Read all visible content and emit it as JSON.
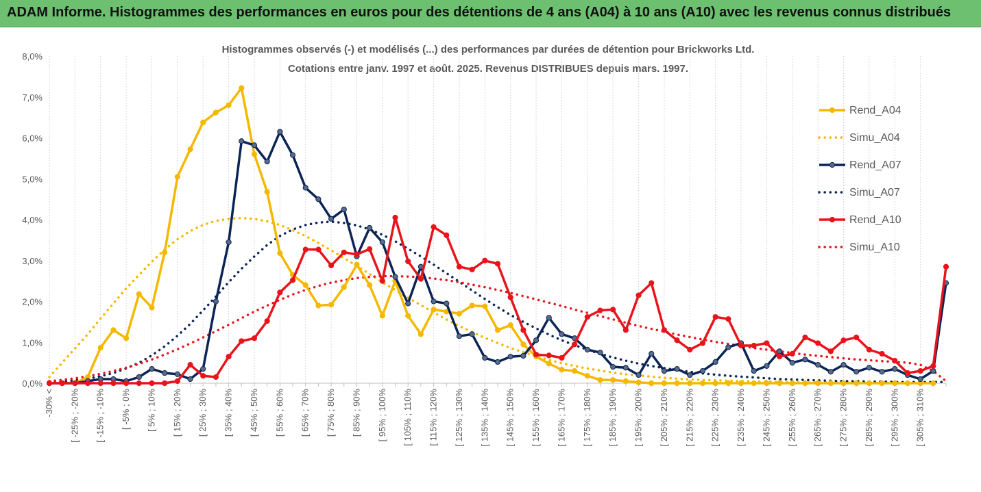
{
  "header": {
    "banner_title": "ADAM Informe. Histogrammes des performances en euros pour des détentions de 4 ans (A04) à 10 ans (A10) avec les revenus connus distribués"
  },
  "chart_data": {
    "type": "line",
    "title_line1": "Histogrammes observés (-) et modélisés (...) des performances par durées de détention pour Brickworks Ltd.",
    "title_line2": "Cotations entre janv. 1997 et août. 2025. Revenus DISTRIBUES depuis mars. 1997.",
    "xlabel": "",
    "ylabel": "",
    "ylim": [
      0,
      8
    ],
    "y_ticks": [
      "0,0%",
      "1,0%",
      "2,0%",
      "3,0%",
      "4,0%",
      "5,0%",
      "6,0%",
      "7,0%",
      "8,0%"
    ],
    "grid": "vertical",
    "legend_position": "top-right",
    "x_labels": [
      "-30% <",
      "[ -25% ; -20%",
      "[ -15% ; -10%",
      "[ -5% ; 0%",
      "[ 5% ; 10%",
      "[ 15% ; 20%",
      "[ 25% ; 30%",
      "[ 35% ; 40%",
      "[ 45% ; 50%",
      "[ 55% ; 60%",
      "[ 65% ; 70%",
      "[ 75% ; 80%",
      "[ 85% ; 90%",
      "[ 95% ; 100%",
      "[ 105% ; 110%",
      "[ 115% ; 120%",
      "[ 125% ; 130%",
      "[ 135% ; 140%",
      "[ 145% ; 150%",
      "[ 155% ; 160%",
      "[ 165% ; 170%",
      "[ 175% ; 180%",
      "[ 185% ; 190%",
      "[ 195% ; 200%",
      "[ 205% ; 210%",
      "[ 215% ; 220%",
      "[ 225% ; 230%",
      "[ 235% ; 240%",
      "[ 245% ; 250%",
      "[ 255% ; 260%",
      "[ 265% ; 270%",
      "[ 275% ; 280%",
      "[ 285% ; 290%",
      "[ 295% ; 300%",
      "[ 305% ; 310%"
    ],
    "series": [
      {
        "name": "Rend_A04",
        "color": "#f5b800",
        "style": "solid",
        "markers": true,
        "values": [
          0.0,
          0.0,
          0.0,
          0.15,
          0.87,
          1.3,
          1.1,
          2.18,
          1.85,
          3.2,
          5.05,
          5.72,
          6.38,
          6.62,
          6.8,
          7.22,
          5.6,
          4.68,
          3.18,
          2.65,
          2.4,
          1.9,
          1.92,
          2.35,
          2.9,
          2.4,
          1.65,
          2.5,
          1.65,
          1.2,
          1.8,
          1.75,
          1.7,
          1.9,
          1.88,
          1.3,
          1.42,
          0.95,
          0.65,
          0.48,
          0.33,
          0.3,
          0.18,
          0.08,
          0.08,
          0.05,
          0.02,
          0.0,
          0.0,
          0.0,
          0.0,
          0.0,
          0.0,
          0.0,
          0.0,
          0.0,
          0.0,
          0.0,
          0.0,
          0.0,
          0.0,
          0.0,
          0.0,
          0.0,
          0.0,
          0.0,
          0.0,
          0.0,
          0.0,
          0.0
        ]
      },
      {
        "name": "Simu_A04",
        "color": "#f5b800",
        "style": "dotted",
        "markers": false,
        "values": [
          0.15,
          0.5,
          0.85,
          1.2,
          1.58,
          1.95,
          2.32,
          2.65,
          2.97,
          3.27,
          3.52,
          3.72,
          3.87,
          3.97,
          4.02,
          4.04,
          4.02,
          3.96,
          3.87,
          3.74,
          3.6,
          3.43,
          3.25,
          3.06,
          2.87,
          2.67,
          2.47,
          2.28,
          2.09,
          1.91,
          1.73,
          1.56,
          1.4,
          1.25,
          1.11,
          0.98,
          0.86,
          0.76,
          0.66,
          0.57,
          0.49,
          0.42,
          0.36,
          0.31,
          0.26,
          0.22,
          0.19,
          0.16,
          0.13,
          0.11,
          0.09,
          0.08,
          0.07,
          0.06,
          0.05,
          0.04,
          0.04,
          0.03,
          0.03,
          0.02,
          0.02,
          0.02,
          0.02,
          0.01,
          0.01,
          0.01,
          0.01,
          0.01,
          0.01,
          0.0
        ]
      },
      {
        "name": "Rend_A07",
        "color": "#0b2456",
        "style": "solid",
        "markers": true,
        "values": [
          0.0,
          0.0,
          0.0,
          0.05,
          0.1,
          0.1,
          0.05,
          0.15,
          0.35,
          0.25,
          0.22,
          0.1,
          0.35,
          2.0,
          3.45,
          5.92,
          5.82,
          5.42,
          6.15,
          5.58,
          4.78,
          4.5,
          4.02,
          4.25,
          3.1,
          3.8,
          3.45,
          2.6,
          1.95,
          2.85,
          2.0,
          1.95,
          1.15,
          1.2,
          0.62,
          0.52,
          0.65,
          0.67,
          1.05,
          1.6,
          1.2,
          1.1,
          0.82,
          0.75,
          0.4,
          0.38,
          0.2,
          0.72,
          0.3,
          0.35,
          0.2,
          0.3,
          0.52,
          0.88,
          0.98,
          0.3,
          0.42,
          0.78,
          0.5,
          0.58,
          0.45,
          0.28,
          0.45,
          0.28,
          0.38,
          0.28,
          0.35,
          0.2,
          0.1,
          0.3,
          2.45
        ]
      },
      {
        "name": "Simu_A07",
        "color": "#0b2456",
        "style": "dotted",
        "markers": false,
        "values": [
          0.02,
          0.04,
          0.07,
          0.11,
          0.17,
          0.25,
          0.36,
          0.5,
          0.68,
          0.9,
          1.16,
          1.45,
          1.78,
          2.12,
          2.47,
          2.8,
          3.1,
          3.38,
          3.6,
          3.76,
          3.87,
          3.93,
          3.95,
          3.92,
          3.86,
          3.76,
          3.63,
          3.47,
          3.29,
          3.1,
          2.9,
          2.69,
          2.48,
          2.27,
          2.06,
          1.86,
          1.67,
          1.5,
          1.34,
          1.19,
          1.05,
          0.93,
          0.82,
          0.72,
          0.63,
          0.55,
          0.48,
          0.42,
          0.37,
          0.32,
          0.28,
          0.24,
          0.21,
          0.18,
          0.16,
          0.14,
          0.12,
          0.1,
          0.09,
          0.08,
          0.07,
          0.06,
          0.05,
          0.05,
          0.04,
          0.04,
          0.03,
          0.03,
          0.03,
          0.03,
          0.03
        ]
      },
      {
        "name": "Rend_A10",
        "color": "#e8141b",
        "style": "solid",
        "markers": true,
        "values": [
          0.0,
          0.0,
          0.0,
          0.0,
          0.0,
          0.0,
          0.0,
          0.0,
          0.0,
          0.0,
          0.05,
          0.45,
          0.18,
          0.15,
          0.65,
          1.03,
          1.1,
          1.52,
          2.22,
          2.52,
          3.27,
          3.27,
          2.88,
          3.2,
          3.15,
          3.28,
          2.5,
          4.05,
          2.98,
          2.55,
          3.82,
          3.62,
          2.85,
          2.78,
          3.0,
          2.92,
          2.1,
          1.3,
          0.7,
          0.68,
          0.62,
          0.95,
          1.62,
          1.78,
          1.8,
          1.3,
          2.15,
          2.45,
          1.3,
          1.05,
          0.82,
          0.98,
          1.62,
          1.57,
          0.92,
          0.92,
          0.98,
          0.65,
          0.72,
          1.12,
          0.98,
          0.78,
          1.05,
          1.12,
          0.82,
          0.72,
          0.55,
          0.25,
          0.3,
          0.42,
          2.85
        ]
      },
      {
        "name": "Simu_A10",
        "color": "#e8141b",
        "style": "dotted",
        "markers": false,
        "values": [
          0.05,
          0.08,
          0.12,
          0.17,
          0.23,
          0.3,
          0.38,
          0.47,
          0.58,
          0.7,
          0.83,
          0.97,
          1.12,
          1.27,
          1.43,
          1.59,
          1.75,
          1.9,
          2.04,
          2.17,
          2.28,
          2.38,
          2.46,
          2.52,
          2.57,
          2.6,
          2.62,
          2.62,
          2.61,
          2.59,
          2.56,
          2.52,
          2.47,
          2.41,
          2.35,
          2.28,
          2.21,
          2.13,
          2.05,
          1.97,
          1.89,
          1.8,
          1.72,
          1.64,
          1.56,
          1.48,
          1.4,
          1.33,
          1.26,
          1.19,
          1.13,
          1.07,
          1.01,
          0.96,
          0.91,
          0.86,
          0.82,
          0.78,
          0.74,
          0.7,
          0.67,
          0.64,
          0.61,
          0.58,
          0.56,
          0.54,
          0.52,
          0.5,
          0.45,
          0.3,
          0.05
        ]
      }
    ]
  }
}
